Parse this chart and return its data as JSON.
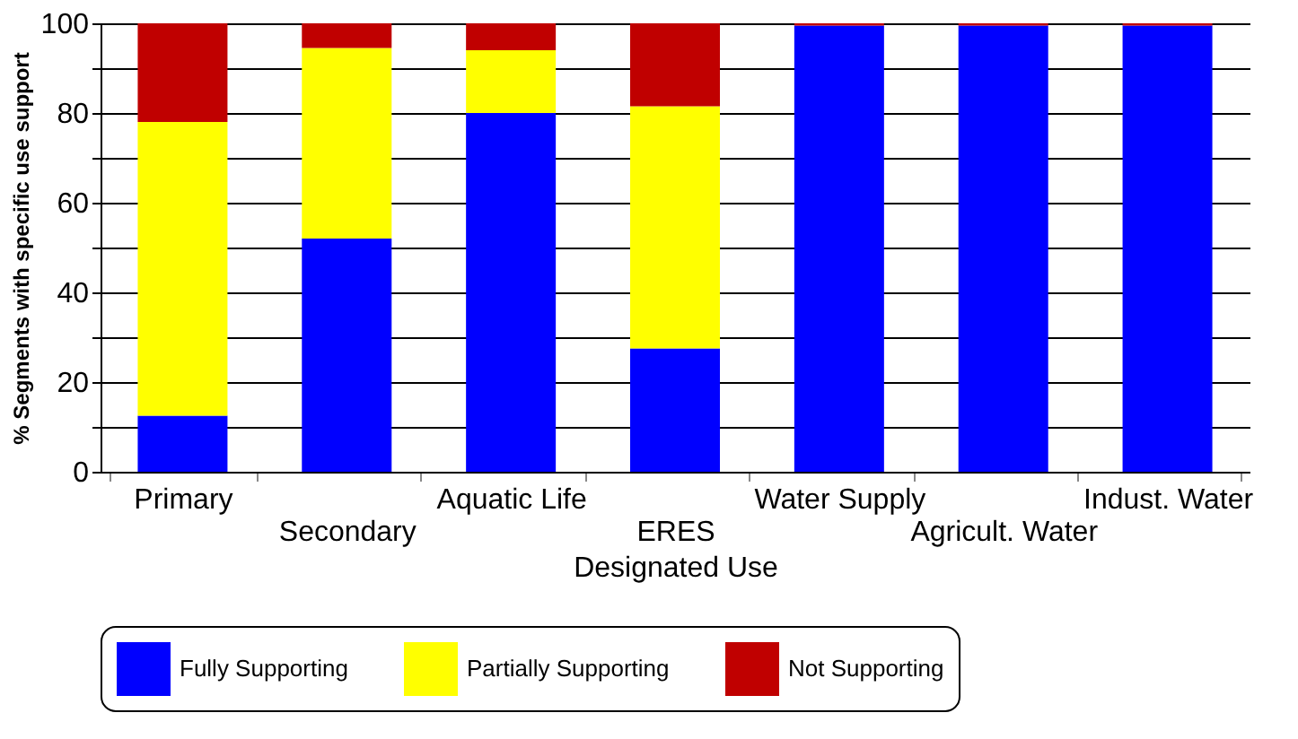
{
  "chart_data": {
    "type": "bar",
    "stacked": true,
    "categories": [
      "Primary",
      "Secondary",
      "Aquatic Life",
      "ERES",
      "Water Supply",
      "Agricult. Water",
      "Indust. Water"
    ],
    "series": [
      {
        "name": "Fully Supporting",
        "color": "#0000ff",
        "values": [
          12.5,
          52,
          80,
          27.5,
          99.5,
          99.5,
          99.5
        ]
      },
      {
        "name": "Partially Supporting",
        "color": "#ffff00",
        "values": [
          65.5,
          42.5,
          14,
          54,
          0,
          0,
          0
        ]
      },
      {
        "name": "Not Supporting",
        "color": "#c00000",
        "values": [
          22,
          5.5,
          6,
          18.5,
          0.5,
          0.5,
          0.5
        ]
      }
    ],
    "xlabel": "Designated Use",
    "ylabel": "% Segments with specific use support",
    "ylim": [
      0,
      100
    ],
    "yticks": [
      0,
      {
        "value": 10,
        "label": null
      },
      20,
      {
        "value": 30,
        "label": null
      },
      40,
      {
        "value": 50,
        "label": null
      },
      60,
      {
        "value": 70,
        "label": null
      },
      80,
      {
        "value": 90,
        "label": null
      },
      100
    ],
    "grid": "y",
    "legend": "bottom"
  }
}
